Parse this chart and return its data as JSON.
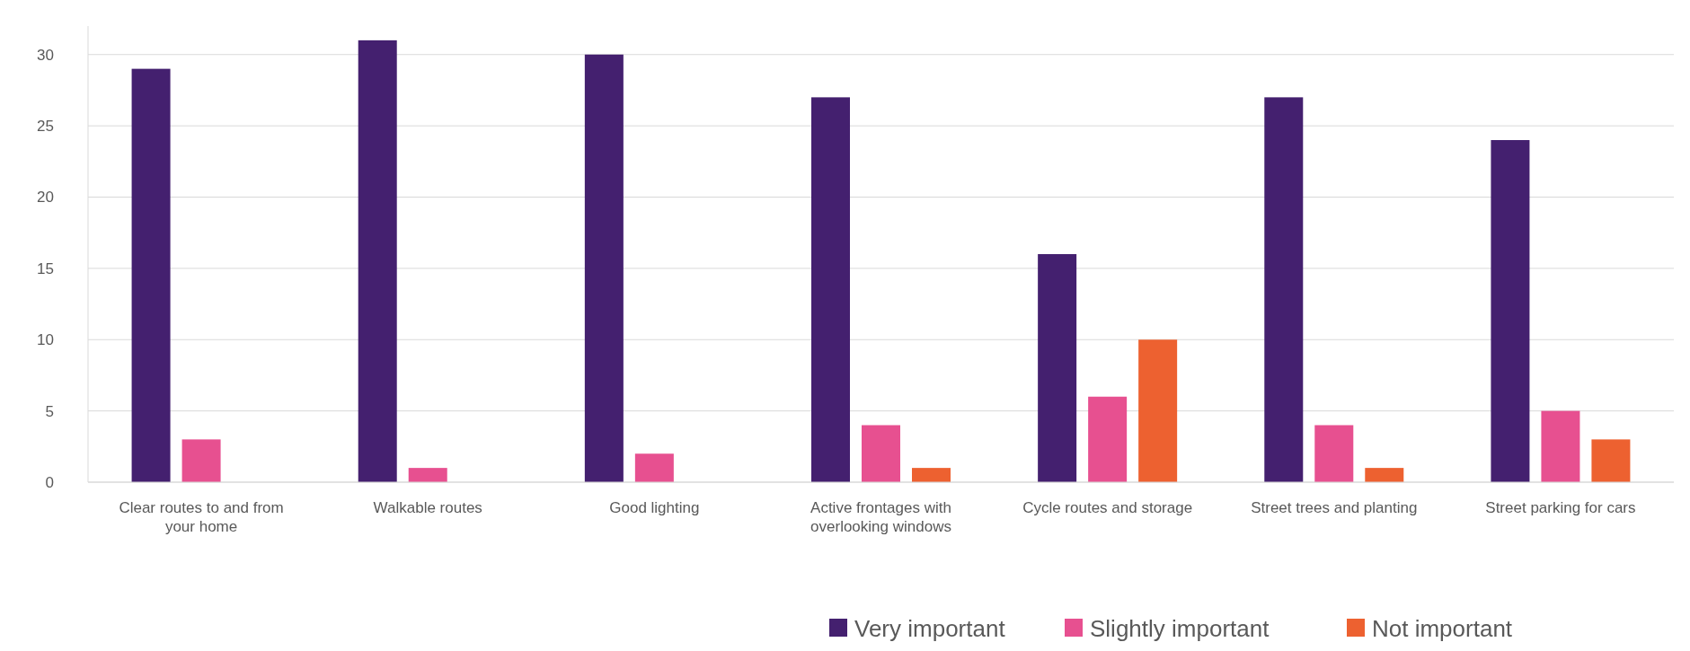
{
  "chart_data": {
    "type": "bar",
    "categories": [
      "Clear routes to and from your home",
      "Walkable routes",
      "Good lighting",
      "Active frontages with overlooking windows",
      "Cycle routes and storage",
      "Street trees and planting",
      "Street parking for cars"
    ],
    "series": [
      {
        "name": "Very important",
        "color": "#44206f",
        "values": [
          29,
          31,
          30,
          27,
          16,
          27,
          24
        ]
      },
      {
        "name": "Slightly important",
        "color": "#e75090",
        "values": [
          3,
          1,
          2,
          4,
          6,
          4,
          5
        ]
      },
      {
        "name": "Not important",
        "color": "#ed6130",
        "values": [
          0,
          0,
          0,
          1,
          10,
          1,
          3
        ]
      }
    ],
    "ylim": [
      0,
      32
    ],
    "yticks": [
      0,
      5,
      10,
      15,
      20,
      25,
      30
    ],
    "grid": "y",
    "legend": "bottom"
  }
}
